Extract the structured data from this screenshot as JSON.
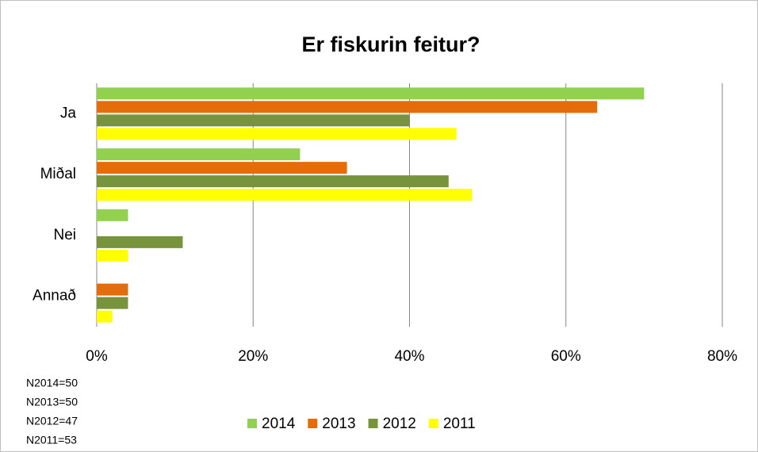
{
  "chart_data": {
    "type": "bar",
    "orientation": "horizontal",
    "title": "Er fiskurin feitur?",
    "categories": [
      "Ja",
      "Miðal",
      "Nei",
      "Annað"
    ],
    "series": [
      {
        "name": "2014",
        "color": "#92d050",
        "values": [
          70,
          26,
          4,
          0
        ]
      },
      {
        "name": "2013",
        "color": "#e46c0a",
        "values": [
          64,
          32,
          0,
          4
        ]
      },
      {
        "name": "2012",
        "color": "#77933c",
        "values": [
          40,
          45,
          11,
          4
        ]
      },
      {
        "name": "2011",
        "color": "#ffff00",
        "values": [
          46,
          48,
          4,
          2
        ]
      }
    ],
    "xlim": [
      0,
      80
    ],
    "xticks": [
      {
        "value": 0,
        "label": "0%"
      },
      {
        "value": 20,
        "label": "20%"
      },
      {
        "value": 40,
        "label": "40%"
      },
      {
        "value": 60,
        "label": "60%"
      },
      {
        "value": 80,
        "label": "80%"
      }
    ],
    "grid": true,
    "legend": "bottom",
    "annotations": [
      "N2014=50",
      "N2013=50",
      "N2012=47",
      "N2011=53"
    ]
  }
}
